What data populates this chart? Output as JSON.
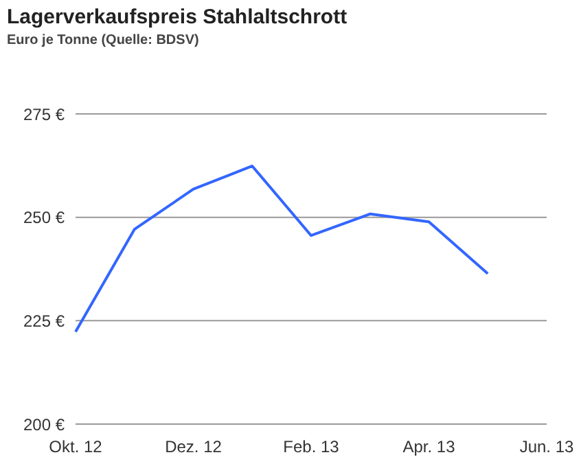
{
  "chart_data": {
    "type": "line",
    "title": "Lagerverkaufspreis Stahlaltschrott",
    "subtitle": "Euro je Tonne (Quelle: BDSV)",
    "categories": [
      "Okt. 12",
      null,
      "Dez. 12",
      null,
      "Feb. 13",
      null,
      "Apr. 13",
      null,
      "Jun. 13"
    ],
    "series": [
      {
        "color": "#3366ff",
        "values": [
          222.3,
          247.1,
          256.8,
          262.4,
          245.6,
          250.8,
          248.9,
          236.4,
          null
        ]
      }
    ],
    "ylim": [
      200,
      275
    ],
    "yticks": [
      {
        "value": 200,
        "label": "200 €"
      },
      {
        "value": 225,
        "label": "225 €"
      },
      {
        "value": 250,
        "label": "250 €"
      },
      {
        "value": 275,
        "label": "275 €"
      }
    ],
    "grid": "y",
    "legend": false,
    "marker": "none",
    "line_style": "solid"
  }
}
